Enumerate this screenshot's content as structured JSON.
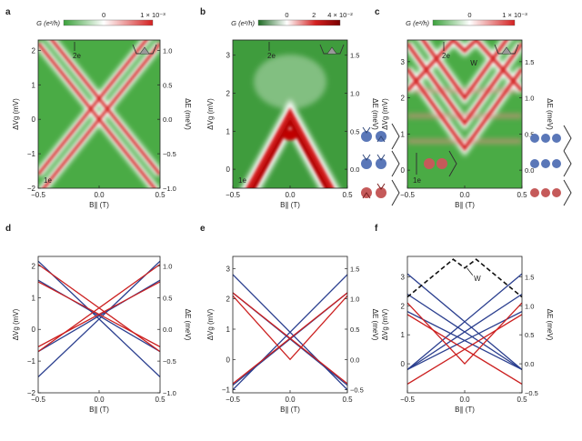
{
  "chart_data": [
    {
      "id": "a",
      "type": "heatmap",
      "panel_label": "a",
      "colorbar": {
        "title": "G (e²/h)",
        "ticks": [
          "0",
          "1 × 10⁻³"
        ],
        "colors": [
          "#3aa13a",
          "#ffffff",
          "#d42020"
        ]
      },
      "xlabel": "B∥ (T)",
      "ylabel": "ΔVg (mV)",
      "y2label": "ΔE (meV)",
      "xlim": [
        -0.5,
        0.5
      ],
      "ylim": [
        -2,
        2.3
      ],
      "y2lim": [
        -1.0,
        1.15
      ],
      "xticks": [
        "−0.5",
        "0.0",
        "0.5"
      ],
      "yticks": [
        "−2",
        "−1",
        "0",
        "1",
        "2"
      ],
      "y2ticks": [
        "−1.0",
        "−0.5",
        "0.0",
        "0.5",
        "1.0"
      ],
      "annotations": [
        "2e",
        "1e"
      ],
      "features": {
        "crossing_lines": [
          {
            "slope": 4.4,
            "b0": 0.0
          },
          {
            "slope": -4.4,
            "b0": 0.0
          },
          {
            "slope": 4.4,
            "b0": 0.6
          },
          {
            "slope": -4.4,
            "b0": 0.6
          }
        ]
      }
    },
    {
      "id": "b",
      "type": "heatmap",
      "panel_label": "b",
      "colorbar": {
        "title": "G (e²/h)",
        "ticks": [
          "0",
          "2",
          "4 × 10⁻²"
        ],
        "colors": [
          "#2e7d32",
          "#ffffff",
          "#8b0000"
        ]
      },
      "xlabel": "B∥ (T)",
      "ylabel": "ΔVg (mV)",
      "y2label": "ΔE (meV)",
      "xlim": [
        -0.5,
        0.5
      ],
      "ylim": [
        -0.5,
        3.4
      ],
      "y2lim": [
        -0.25,
        1.7
      ],
      "xticks": [
        "−0.5",
        "0.0",
        "0.5"
      ],
      "yticks": [
        "0",
        "1",
        "2",
        "3"
      ],
      "y2ticks": [
        "0.0",
        "0.5",
        "1.0",
        "1.5"
      ],
      "annotations": [
        "2e",
        "1e"
      ],
      "features": {
        "chevron_peak": {
          "x": 0.0,
          "y": 1.5
        },
        "slope": 5.5
      }
    },
    {
      "id": "c",
      "type": "heatmap",
      "panel_label": "c",
      "colorbar": {
        "title": "G (e²/h)",
        "ticks": [
          "0",
          "1 × 10⁻³"
        ],
        "colors": [
          "#3aa13a",
          "#ffffff",
          "#d42020"
        ]
      },
      "xlabel": "B∥ (T)",
      "ylabel": "ΔVg (mV)",
      "y2label": "ΔE (meV)",
      "xlim": [
        -0.5,
        0.5
      ],
      "ylim": [
        -0.5,
        3.6
      ],
      "y2lim": [
        -0.25,
        1.8
      ],
      "xticks": [
        "−0.5",
        "0.0",
        "0.5"
      ],
      "yticks": [
        "0",
        "1",
        "2",
        "3"
      ],
      "y2ticks": [
        "0.0",
        "0.5",
        "1.0",
        "1.5"
      ],
      "annotations": [
        "2e",
        "1e",
        "W"
      ],
      "features": {
        "chevron_vertices": [
          0.6,
          1.3,
          2.0
        ],
        "w_peaks": [
          -0.1,
          0.1
        ],
        "w_y": 3.3
      }
    },
    {
      "id": "d",
      "type": "line",
      "panel_label": "d",
      "xlabel": "B∥ (T)",
      "ylabel": "ΔVg (mV)",
      "y2label": "ΔE (meV)",
      "xlim": [
        -0.5,
        0.5
      ],
      "ylim": [
        -2,
        2.3
      ],
      "y2lim": [
        -1.0,
        1.15
      ],
      "xticks": [
        "−0.5",
        "0.0",
        "0.5"
      ],
      "yticks": [
        "−2",
        "−1",
        "0",
        "1",
        "2"
      ],
      "y2ticks": [
        "−1.0",
        "−0.5",
        "0.0",
        "0.5",
        "1.0"
      ],
      "series": [
        {
          "color": "blue",
          "lines": [
            {
              "x": [
                -0.5,
                0.5
              ],
              "y": [
                2.15,
                -1.5
              ]
            },
            {
              "x": [
                -0.5,
                0.5
              ],
              "y": [
                -1.5,
                2.15
              ]
            },
            {
              "x": [
                -0.5,
                0.5
              ],
              "y": [
                1.55,
                -0.7
              ]
            },
            {
              "x": [
                -0.5,
                0.5
              ],
              "y": [
                -0.7,
                1.55
              ]
            }
          ]
        },
        {
          "color": "red",
          "lines": [
            {
              "x": [
                -0.5,
                0.5
              ],
              "y": [
                2.05,
                -0.7
              ]
            },
            {
              "x": [
                -0.5,
                0.5
              ],
              "y": [
                -0.7,
                2.05
              ]
            },
            {
              "x": [
                -0.5,
                0.5
              ],
              "y": [
                1.5,
                -0.55
              ]
            },
            {
              "x": [
                -0.5,
                0.5
              ],
              "y": [
                -0.55,
                1.5
              ]
            }
          ]
        }
      ]
    },
    {
      "id": "e",
      "type": "line",
      "panel_label": "e",
      "xlabel": "B∥ (T)",
      "ylabel": "ΔVg (mV)",
      "y2label": "ΔE (meV)",
      "xlim": [
        -0.5,
        0.5
      ],
      "ylim": [
        -1.1,
        3.4
      ],
      "y2lim": [
        -0.55,
        1.7
      ],
      "xticks": [
        "−0.5",
        "0.0",
        "0.5"
      ],
      "yticks": [
        "−1",
        "0",
        "1",
        "2",
        "3"
      ],
      "y2ticks": [
        "−0.5",
        "0.0",
        "0.5",
        "1.0",
        "1.5"
      ],
      "series": [
        {
          "color": "blue",
          "lines": [
            {
              "x": [
                -0.5,
                0.5
              ],
              "y": [
                2.8,
                -1.0
              ]
            },
            {
              "x": [
                -0.5,
                0.5
              ],
              "y": [
                -1.0,
                2.8
              ]
            },
            {
              "x": [
                -0.5,
                0.5
              ],
              "y": [
                2.2,
                -0.85
              ]
            },
            {
              "x": [
                -0.5,
                0.5
              ],
              "y": [
                -0.85,
                2.2
              ]
            }
          ]
        },
        {
          "color": "red",
          "lines": [
            {
              "x": [
                -0.5,
                0.0,
                0.5
              ],
              "y": [
                2.1,
                0.0,
                2.1
              ]
            },
            {
              "x": [
                -0.5,
                0.5
              ],
              "y": [
                2.2,
                -0.8
              ]
            },
            {
              "x": [
                -0.5,
                0.5
              ],
              "y": [
                -0.8,
                2.2
              ]
            }
          ]
        }
      ]
    },
    {
      "id": "f",
      "type": "line",
      "panel_label": "f",
      "xlabel": "B∥ (T)",
      "ylabel": "ΔVg (mV)",
      "y2label": "ΔE (meV)",
      "xlim": [
        -0.5,
        0.5
      ],
      "ylim": [
        -1.0,
        3.7
      ],
      "y2lim": [
        -0.5,
        1.85
      ],
      "xticks": [
        "−0.5",
        "0.0",
        "0.5"
      ],
      "yticks": [
        "0",
        "1",
        "2",
        "3"
      ],
      "y2ticks": [
        "−0.5",
        "0.0",
        "0.5",
        "1.0",
        "1.5"
      ],
      "annotations": [
        "W"
      ],
      "series": [
        {
          "color": "blue",
          "lines": [
            {
              "x": [
                -0.5,
                0.5
              ],
              "y": [
                3.1,
                -0.2
              ]
            },
            {
              "x": [
                -0.5,
                0.5
              ],
              "y": [
                -0.2,
                3.1
              ]
            },
            {
              "x": [
                -0.5,
                0.5
              ],
              "y": [
                2.4,
                -0.2
              ]
            },
            {
              "x": [
                -0.5,
                0.5
              ],
              "y": [
                -0.2,
                2.4
              ]
            },
            {
              "x": [
                -0.5,
                0.5
              ],
              "y": [
                1.8,
                -0.2
              ]
            },
            {
              "x": [
                -0.5,
                0.5
              ],
              "y": [
                -0.2,
                1.8
              ]
            }
          ]
        },
        {
          "color": "red",
          "lines": [
            {
              "x": [
                -0.5,
                0.0,
                0.5
              ],
              "y": [
                2.1,
                0.0,
                2.1
              ]
            },
            {
              "x": [
                -0.5,
                0.5
              ],
              "y": [
                1.7,
                -0.7
              ]
            },
            {
              "x": [
                -0.5,
                0.5
              ],
              "y": [
                -0.7,
                1.7
              ]
            }
          ]
        },
        {
          "color": "black",
          "style": "dashed",
          "lines": [
            {
              "x": [
                -0.5,
                -0.1,
                0.0,
                0.1,
                0.5
              ],
              "y": [
                2.3,
                3.6,
                3.3,
                3.6,
                2.3
              ]
            }
          ]
        }
      ]
    }
  ]
}
